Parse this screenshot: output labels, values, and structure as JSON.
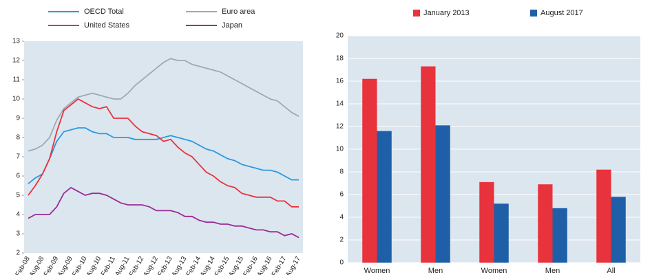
{
  "chart_data": [
    {
      "type": "line",
      "categories": [
        "Feb-08",
        null,
        "Aug-08",
        null,
        "Feb-09",
        null,
        "Aug-09",
        null,
        "Feb-10",
        null,
        "Aug-10",
        null,
        "Feb-11",
        null,
        "Aug-11",
        null,
        "Feb-12",
        null,
        "Aug-12",
        null,
        "Feb-13",
        null,
        "Aug-13",
        null,
        "Feb-14",
        null,
        "Aug-14",
        null,
        "Feb-15",
        null,
        "Aug-15",
        null,
        "Feb-16",
        null,
        "Aug-16",
        null,
        "Feb-17",
        null,
        "Aug-17"
      ],
      "series": [
        {
          "name": "OECD Total",
          "color": "#2a9ae0",
          "values": [
            5.6,
            5.9,
            6.1,
            6.9,
            7.8,
            8.3,
            8.4,
            8.5,
            8.5,
            8.3,
            8.2,
            8.2,
            8.0,
            8.0,
            8.0,
            7.9,
            7.9,
            7.9,
            7.9,
            8.0,
            8.1,
            8.0,
            7.9,
            7.8,
            7.6,
            7.4,
            7.3,
            7.1,
            6.9,
            6.8,
            6.6,
            6.5,
            6.4,
            6.3,
            6.3,
            6.2,
            6.0,
            5.8,
            5.8
          ]
        },
        {
          "name": "Euro area",
          "color": "#9aabb8",
          "values": [
            7.3,
            7.4,
            7.6,
            8.0,
            8.9,
            9.5,
            9.8,
            10.1,
            10.2,
            10.3,
            10.2,
            10.1,
            10.0,
            10.0,
            10.3,
            10.7,
            11.0,
            11.3,
            11.6,
            11.9,
            12.1,
            12.0,
            12.0,
            11.8,
            11.7,
            11.6,
            11.5,
            11.4,
            11.2,
            11.0,
            10.8,
            10.6,
            10.4,
            10.2,
            10.0,
            9.9,
            9.6,
            9.3,
            9.1
          ]
        },
        {
          "name": "United States",
          "color": "#e8323c",
          "values": [
            5.0,
            5.5,
            6.1,
            6.9,
            8.3,
            9.4,
            9.7,
            10.0,
            9.8,
            9.6,
            9.5,
            9.6,
            9.0,
            9.0,
            9.0,
            8.6,
            8.3,
            8.2,
            8.1,
            7.8,
            7.9,
            7.5,
            7.2,
            7.0,
            6.6,
            6.2,
            6.0,
            5.7,
            5.5,
            5.4,
            5.1,
            5.0,
            4.9,
            4.9,
            4.9,
            4.7,
            4.7,
            4.4,
            4.4
          ]
        },
        {
          "name": "Japan",
          "color": "#9b2b96",
          "values": [
            3.8,
            4.0,
            4.0,
            4.0,
            4.4,
            5.1,
            5.4,
            5.2,
            5.0,
            5.1,
            5.1,
            5.0,
            4.8,
            4.6,
            4.5,
            4.5,
            4.5,
            4.4,
            4.2,
            4.2,
            4.2,
            4.1,
            3.9,
            3.9,
            3.7,
            3.6,
            3.6,
            3.5,
            3.5,
            3.4,
            3.4,
            3.3,
            3.2,
            3.2,
            3.1,
            3.1,
            2.9,
            3.0,
            2.8
          ]
        }
      ],
      "ylim": [
        2,
        13
      ],
      "yticks": [
        2,
        3,
        4,
        5,
        6,
        7,
        8,
        9,
        10,
        11,
        12,
        13
      ],
      "grid": false
    },
    {
      "type": "bar",
      "categories": [
        "Women",
        "Men",
        "Women",
        "Men",
        "All"
      ],
      "series": [
        {
          "name": "January 2013",
          "color": "#e8323c",
          "values": [
            16.2,
            17.3,
            7.1,
            6.9,
            8.2
          ]
        },
        {
          "name": "August 2017",
          "color": "#1f5fa8",
          "values": [
            11.6,
            12.1,
            5.2,
            4.8,
            5.8
          ]
        }
      ],
      "ylim": [
        0,
        20
      ],
      "yticks": [
        0,
        2,
        4,
        6,
        8,
        10,
        12,
        14,
        16,
        18,
        20
      ],
      "grid": true
    }
  ]
}
